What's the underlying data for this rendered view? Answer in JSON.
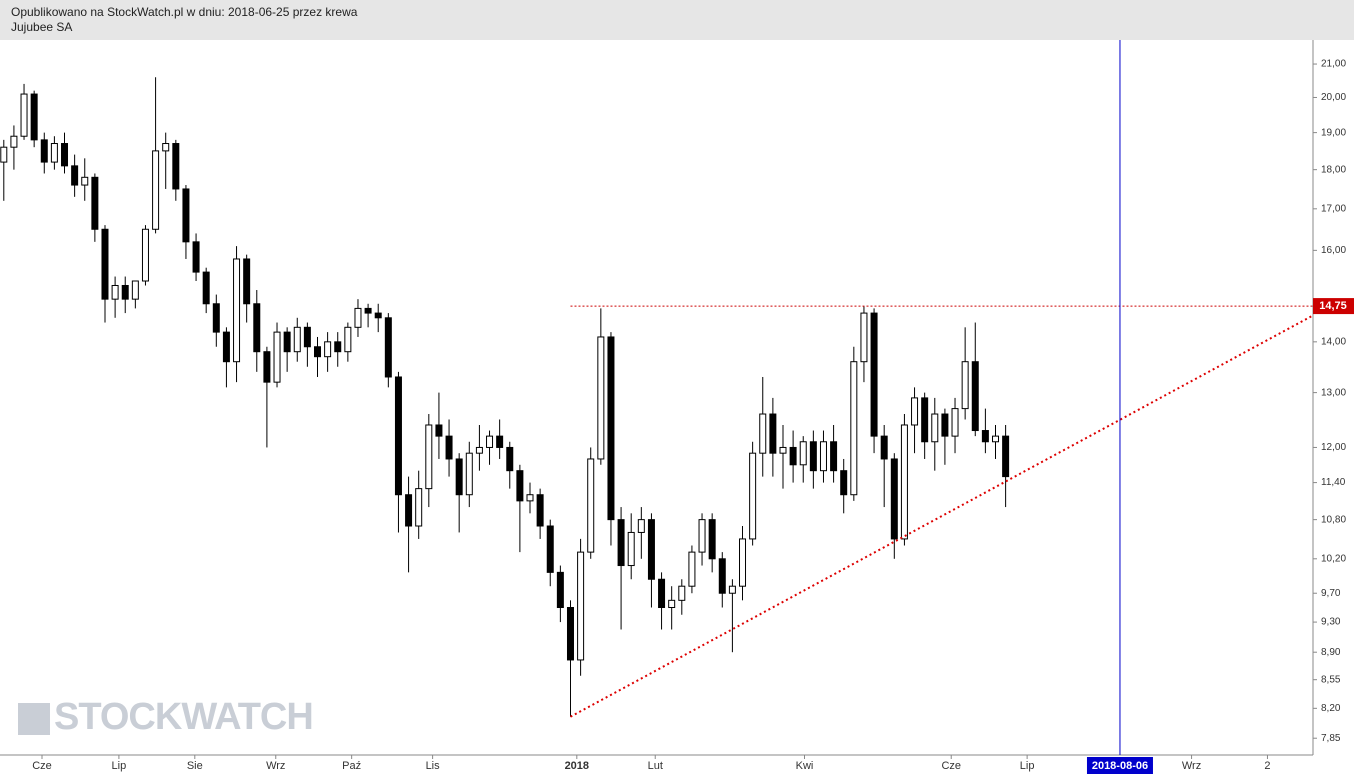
{
  "chart_data": {
    "type": "candlestick",
    "title": "Opublikowano na StockWatch.pl w dniu: 2018-06-25 przez krewa",
    "subtitle": "Jujubee SA",
    "watermark": "STOCKWATCH",
    "log_scale": true,
    "ylim": [
      7.66,
      21.75
    ],
    "yticks": [
      {
        "value": 21,
        "label": "21,00"
      },
      {
        "value": 20,
        "label": "20,00"
      },
      {
        "value": 19,
        "label": "19,00"
      },
      {
        "value": 18,
        "label": "18,00"
      },
      {
        "value": 17,
        "label": "17,00"
      },
      {
        "value": 16,
        "label": "16,00"
      },
      {
        "value": 14,
        "label": "14,00"
      },
      {
        "value": 13,
        "label": "13,00"
      },
      {
        "value": 12,
        "label": "12,00"
      },
      {
        "value": 11.4,
        "label": "11,40"
      },
      {
        "value": 10.8,
        "label": "10,80"
      },
      {
        "value": 10.2,
        "label": "10,20"
      },
      {
        "value": 9.7,
        "label": "9,70"
      },
      {
        "value": 9.3,
        "label": "9,30"
      },
      {
        "value": 8.9,
        "label": "8,90"
      },
      {
        "value": 8.55,
        "label": "8,55"
      },
      {
        "value": 8.2,
        "label": "8,20"
      },
      {
        "value": 7.85,
        "label": "7,85"
      }
    ],
    "xlim": [
      0,
      519
    ],
    "xticks": [
      {
        "value": 16.6,
        "label": "Cze"
      },
      {
        "value": 47,
        "label": "Lip"
      },
      {
        "value": 77,
        "label": "Sie"
      },
      {
        "value": 109,
        "label": "Wrz"
      },
      {
        "value": 139,
        "label": "Paź"
      },
      {
        "value": 171,
        "label": "Lis"
      },
      {
        "value": 228,
        "label": "2018"
      },
      {
        "value": 259,
        "label": "Lut"
      },
      {
        "value": 318,
        "label": "Kwi"
      },
      {
        "value": 376,
        "label": "Cze"
      },
      {
        "value": 406,
        "label": "Lip"
      },
      {
        "value": 471,
        "label": "Wrz"
      },
      {
        "value": 501,
        "label": "2"
      }
    ],
    "up_color": "#ffffff",
    "down_color": "#000000",
    "x": [
      1.5,
      5.5,
      9.5,
      13.5,
      17.5,
      21.5,
      25.5,
      29.5,
      33.5,
      37.5,
      41.5,
      45.5,
      49.5,
      53.5,
      57.5,
      61.5,
      65.5,
      69.5,
      73.5,
      77.5,
      81.5,
      85.5,
      89.5,
      93.5,
      97.5,
      101.5,
      105.5,
      109.5,
      113.5,
      117.5,
      121.5,
      125.5,
      129.5,
      133.5,
      137.5,
      141.5,
      145.5,
      149.5,
      153.5,
      157.5,
      161.5,
      165.5,
      169.5,
      173.5,
      177.5,
      181.5,
      185.5,
      189.5,
      193.5,
      197.5,
      201.5,
      205.5,
      209.5,
      213.5,
      217.5,
      221.5,
      225.5,
      229.5,
      233.5,
      237.5,
      241.5,
      245.5,
      249.5,
      253.5,
      257.5,
      261.5,
      265.5,
      269.5,
      273.5,
      277.5,
      281.5,
      285.5,
      289.5,
      293.5,
      297.5,
      301.5,
      305.5,
      309.5,
      313.5,
      317.5,
      321.5,
      325.5,
      329.5,
      333.5,
      337.5,
      341.5,
      345.5,
      349.5,
      353.5,
      357.5,
      361.5,
      365.5,
      369.5,
      373.5,
      377.5,
      381.5,
      385.5,
      389.5,
      393.5,
      397.5
    ],
    "open": [
      18.2,
      18.6,
      18.9,
      20.1,
      18.8,
      18.2,
      18.7,
      18.1,
      17.6,
      17.8,
      16.5,
      14.9,
      15.2,
      14.9,
      15.3,
      16.5,
      18.5,
      18.7,
      17.5,
      16.2,
      15.5,
      14.8,
      14.2,
      13.6,
      15.8,
      14.8,
      13.8,
      13.2,
      14.2,
      13.8,
      14.3,
      13.9,
      13.7,
      14.0,
      13.8,
      14.3,
      14.7,
      14.6,
      14.5,
      13.3,
      11.2,
      10.7,
      11.3,
      12.4,
      12.2,
      11.8,
      11.2,
      11.9,
      12.0,
      12.2,
      12.0,
      11.6,
      11.1,
      11.2,
      10.7,
      10.0,
      9.5,
      8.8,
      10.3,
      11.8,
      14.1,
      10.8,
      10.1,
      10.6,
      10.8,
      9.9,
      9.5,
      9.6,
      9.8,
      10.3,
      10.8,
      10.2,
      9.7,
      9.8,
      10.5,
      11.9,
      12.6,
      11.9,
      12.0,
      11.7,
      12.1,
      11.6,
      12.1,
      11.6,
      11.2,
      13.6,
      14.6,
      12.2,
      11.8,
      10.5,
      12.4,
      12.9,
      12.1,
      12.6,
      12.2,
      12.7,
      13.6,
      12.3,
      12.1,
      12.2
    ],
    "high": [
      18.8,
      19.2,
      20.4,
      20.2,
      19.0,
      18.9,
      19.0,
      18.4,
      18.3,
      17.9,
      16.6,
      15.4,
      15.4,
      15.3,
      16.6,
      20.6,
      19.0,
      18.8,
      17.6,
      16.4,
      15.6,
      15.0,
      14.3,
      16.1,
      15.9,
      15.1,
      13.9,
      14.4,
      14.3,
      14.5,
      14.4,
      14.1,
      14.2,
      14.2,
      14.4,
      14.9,
      14.8,
      14.8,
      14.6,
      13.4,
      11.5,
      11.6,
      12.6,
      13.0,
      12.5,
      11.9,
      12.1,
      12.4,
      12.3,
      12.5,
      12.1,
      11.7,
      11.4,
      11.3,
      10.8,
      10.1,
      9.6,
      10.5,
      12.0,
      14.7,
      14.2,
      11.0,
      10.9,
      11.0,
      10.9,
      10.0,
      9.8,
      9.9,
      10.4,
      10.9,
      10.9,
      10.3,
      9.9,
      10.7,
      12.1,
      13.3,
      12.9,
      12.4,
      12.3,
      12.2,
      12.3,
      12.3,
      12.4,
      11.8,
      13.9,
      14.75,
      14.7,
      12.4,
      11.9,
      12.6,
      13.1,
      13.0,
      12.9,
      12.7,
      12.9,
      14.3,
      14.4,
      12.7,
      12.4,
      12.4
    ],
    "low": [
      17.2,
      18.0,
      18.8,
      18.6,
      17.9,
      18.0,
      17.9,
      17.3,
      17.2,
      16.2,
      14.4,
      14.5,
      14.6,
      14.7,
      15.2,
      16.4,
      17.5,
      17.2,
      15.8,
      15.3,
      14.6,
      13.9,
      13.1,
      13.2,
      14.4,
      13.4,
      12.0,
      13.1,
      13.4,
      13.6,
      13.5,
      13.3,
      13.4,
      13.5,
      13.6,
      14.1,
      14.3,
      14.2,
      13.1,
      10.6,
      10.0,
      10.5,
      11.0,
      11.8,
      11.5,
      10.6,
      11.0,
      11.6,
      11.7,
      11.8,
      11.3,
      10.3,
      10.9,
      10.5,
      9.8,
      9.3,
      8.1,
      8.6,
      10.2,
      11.7,
      10.4,
      9.2,
      9.9,
      10.2,
      9.5,
      9.2,
      9.2,
      9.4,
      9.7,
      10.1,
      10.0,
      9.5,
      8.9,
      9.6,
      10.4,
      11.5,
      11.5,
      11.3,
      11.4,
      11.4,
      11.3,
      11.4,
      11.4,
      10.9,
      11.1,
      13.2,
      11.9,
      11.0,
      10.2,
      10.4,
      11.9,
      11.8,
      11.6,
      11.7,
      11.9,
      12.5,
      12.2,
      11.9,
      11.8,
      11.0
    ],
    "close": [
      18.6,
      18.9,
      20.1,
      18.8,
      18.2,
      18.7,
      18.1,
      17.6,
      17.8,
      16.5,
      14.9,
      15.2,
      14.9,
      15.3,
      16.5,
      18.5,
      18.7,
      17.5,
      16.2,
      15.5,
      14.8,
      14.2,
      13.6,
      15.8,
      14.8,
      13.8,
      13.2,
      14.2,
      13.8,
      14.3,
      13.9,
      13.7,
      14.0,
      13.8,
      14.3,
      14.7,
      14.6,
      14.5,
      13.3,
      11.2,
      10.7,
      11.3,
      12.4,
      12.2,
      11.8,
      11.2,
      11.9,
      12.0,
      12.2,
      12.0,
      11.6,
      11.1,
      11.2,
      10.7,
      10.0,
      9.5,
      8.8,
      10.3,
      11.8,
      14.1,
      10.8,
      10.1,
      10.6,
      10.8,
      9.9,
      9.5,
      9.6,
      9.8,
      10.3,
      10.8,
      10.2,
      9.7,
      9.8,
      10.5,
      11.9,
      12.6,
      11.9,
      12.0,
      11.7,
      12.1,
      11.6,
      12.1,
      11.6,
      11.2,
      13.6,
      14.6,
      12.2,
      11.8,
      10.5,
      12.4,
      12.9,
      12.1,
      12.6,
      12.2,
      12.7,
      13.6,
      12.3,
      12.1,
      12.2,
      11.5
    ],
    "hline": {
      "value": 14.75,
      "label": "14,75",
      "color": "#cc0000",
      "x_start": 225.5
    },
    "trendline": {
      "x": [
        225.5,
        519
      ],
      "y": [
        8.1,
        14.55
      ],
      "color": "#dd0000"
    },
    "vline": {
      "value": 442.7,
      "label": "2018-08-06",
      "color": "#0000cc"
    }
  }
}
